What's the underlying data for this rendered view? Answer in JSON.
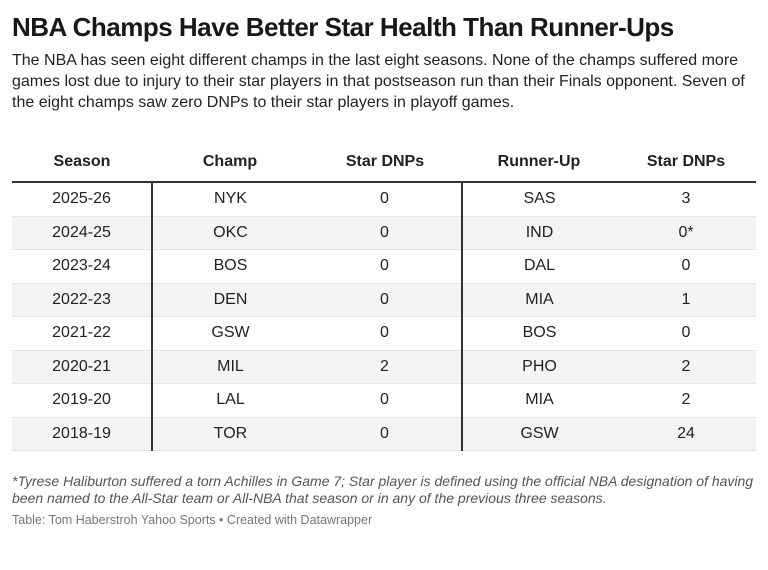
{
  "header": {
    "title": "NBA Champs Have Better Star Health Than Runner-Ups",
    "description": "The NBA has seen eight different champs in the last eight seasons. None of the champs suffered more games lost due to injury to their star players in that postseason run than their Finals opponent. Seven of the eight champs saw zero DNPs to their star players in playoff games."
  },
  "table": {
    "columns": [
      "Season",
      "Champ",
      "Star DNPs",
      "Runner-Up",
      "Star DNPs"
    ],
    "rows": [
      [
        "2025-26",
        "NYK",
        "0",
        "SAS",
        "3"
      ],
      [
        "2024-25",
        "OKC",
        "0",
        "IND",
        "0*"
      ],
      [
        "2023-24",
        "BOS",
        "0",
        "DAL",
        "0"
      ],
      [
        "2022-23",
        "DEN",
        "0",
        "MIA",
        "1"
      ],
      [
        "2021-22",
        "GSW",
        "0",
        "BOS",
        "0"
      ],
      [
        "2020-21",
        "MIL",
        "2",
        "PHO",
        "2"
      ],
      [
        "2019-20",
        "LAL",
        "0",
        "MIA",
        "2"
      ],
      [
        "2018-19",
        "TOR",
        "0",
        "GSW",
        "24"
      ]
    ]
  },
  "notes": "*Tyrese Haliburton suffered a torn Achilles in Game 7; Star player is defined using the official NBA designation of having been named to the All-Star team or All-NBA that season or in any of the previous three seasons.",
  "source": "Table: Tom Haberstroh Yahoo Sports • Created with Datawrapper"
}
